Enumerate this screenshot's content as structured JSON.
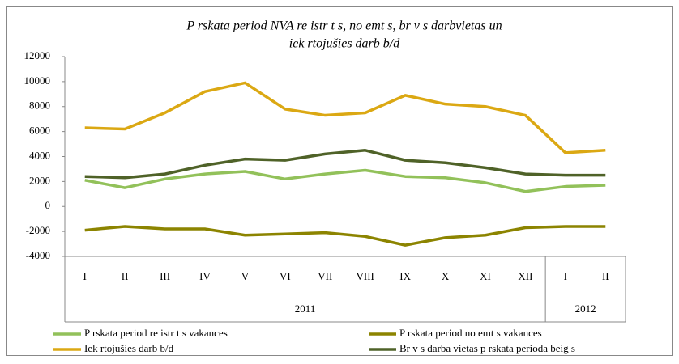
{
  "chart_data": {
    "type": "line",
    "title": [
      "P rskata period  NVA re istr t s, no emt s, br v s darbvietas un",
      "iek rtojušies darb  b/d"
    ],
    "categories": [
      "I",
      "II",
      "III",
      "IV",
      "V",
      "VI",
      "VII",
      "VIII",
      "IX",
      "X",
      "XI",
      "XII",
      "I",
      "II"
    ],
    "groups": [
      {
        "label": "2011",
        "count": 12
      },
      {
        "label": "2012",
        "count": 2
      }
    ],
    "series": [
      {
        "name": "P rskata period  re istr t s vakances",
        "color": "#92c15a",
        "values": [
          2100,
          1500,
          2200,
          2600,
          2800,
          2200,
          2600,
          2900,
          2400,
          2300,
          1900,
          1200,
          1600,
          1700
        ]
      },
      {
        "name": "P rskata period  no emt s vakances",
        "color": "#8c8400",
        "values": [
          -1900,
          -1600,
          -1800,
          -1800,
          -2300,
          -2200,
          -2100,
          -2400,
          -3100,
          -2500,
          -2300,
          -1700,
          -1600,
          -1600
        ]
      },
      {
        "name": "Iek rtojušies darb  b/d",
        "color": "#dba813",
        "values": [
          6300,
          6200,
          7500,
          9200,
          9900,
          7800,
          7300,
          7500,
          8900,
          8200,
          8000,
          7300,
          4300,
          4500
        ]
      },
      {
        "name": "Br v s darba vietas p rskata perioda beig s",
        "color": "#4f6228",
        "values": [
          2400,
          2300,
          2600,
          3300,
          3800,
          3700,
          4200,
          4500,
          3700,
          3500,
          3100,
          2600,
          2500,
          2500
        ]
      }
    ],
    "ylim": [
      -4000,
      12000
    ],
    "yticks": [
      -4000,
      -2000,
      0,
      2000,
      4000,
      6000,
      8000,
      10000,
      12000
    ],
    "grid": false
  }
}
